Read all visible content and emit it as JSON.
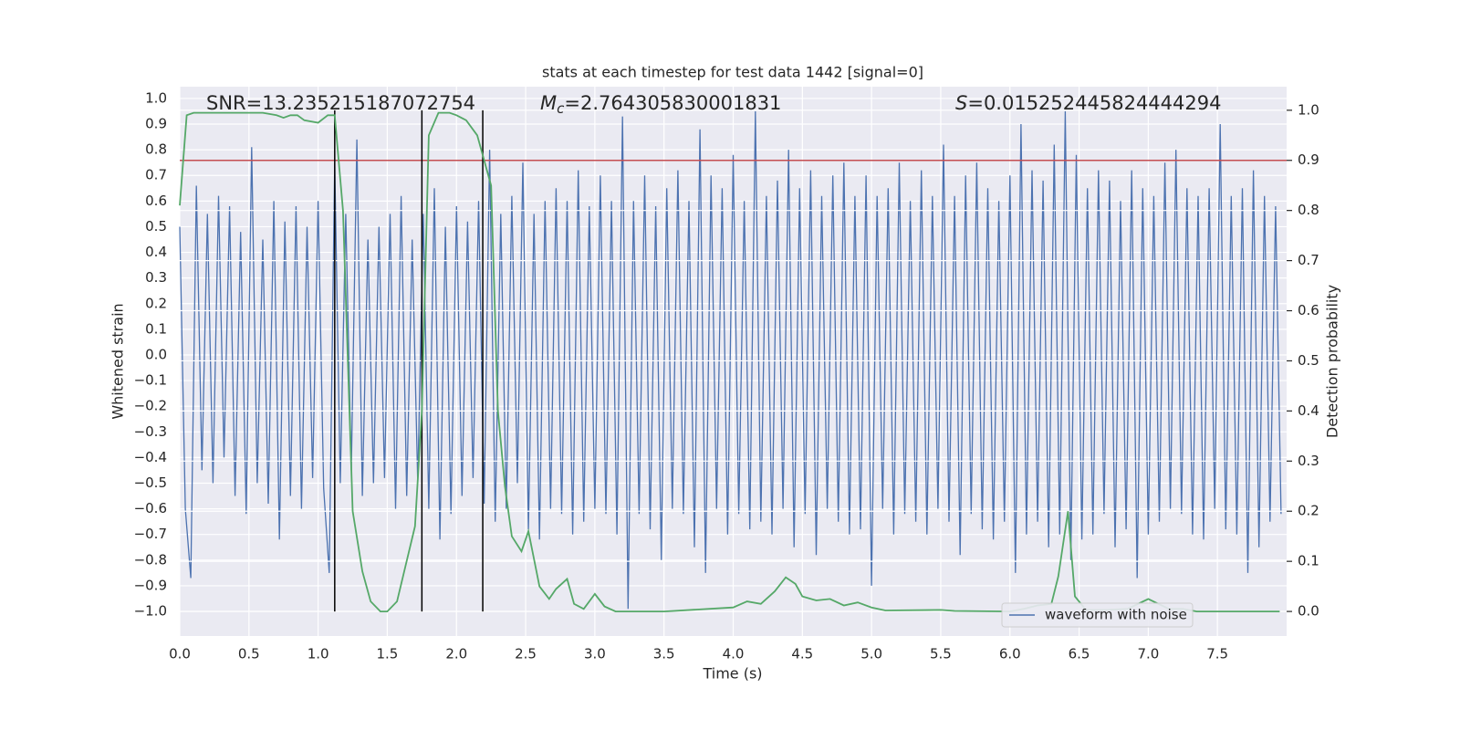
{
  "chart_data": {
    "type": "line",
    "title": "stats at each timestep for test data 1442 [signal=0]",
    "x_label": "Time (s)",
    "y_label": "Whitened strain",
    "y2_label": "Detection probability",
    "annotations": [
      {
        "text": "SNR=13.235215187072754"
      },
      {
        "symbol": "M",
        "subscript": "c",
        "text": "=2.764305830001831"
      },
      {
        "symbol": "S",
        "text": "=0.015252445824444294"
      }
    ],
    "xlim": [
      0,
      8
    ],
    "ylim": [
      -1.096,
      1.046
    ],
    "y2lim": [
      -0.049,
      1.047
    ],
    "xticks": [
      {
        "value": 0,
        "label": "0.0"
      },
      0.5,
      {
        "value": 1,
        "label": "1.0"
      },
      1.5,
      {
        "value": 2,
        "label": "2.0"
      },
      2.5,
      {
        "value": 3,
        "label": "3.0"
      },
      3.5,
      {
        "value": 4,
        "label": "4.0"
      },
      4.5,
      {
        "value": 5,
        "label": "5.0"
      },
      5.5,
      {
        "value": 6,
        "label": "6.0"
      },
      6.5,
      {
        "value": 7,
        "label": "7.0"
      },
      7.5
    ],
    "yticks": [
      {
        "value": -1,
        "label": "−1.0"
      },
      {
        "value": -0.9,
        "label": "−0.9"
      },
      {
        "value": -0.8,
        "label": "−0.8"
      },
      {
        "value": -0.7,
        "label": "−0.7"
      },
      {
        "value": -0.6,
        "label": "−0.6"
      },
      {
        "value": -0.5,
        "label": "−0.5"
      },
      {
        "value": -0.4,
        "label": "−0.4"
      },
      {
        "value": -0.3,
        "label": "−0.3"
      },
      {
        "value": -0.2,
        "label": "−0.2"
      },
      {
        "value": -0.1,
        "label": "−0.1"
      },
      {
        "value": 0,
        "label": "0.0"
      },
      0.1,
      0.2,
      0.3,
      0.4,
      0.5,
      0.6,
      0.7,
      0.8,
      0.9,
      {
        "value": 1,
        "label": "1.0"
      }
    ],
    "y2ticks": [
      {
        "value": 0,
        "label": "0.0"
      },
      0.1,
      0.2,
      0.3,
      0.4,
      0.5,
      0.6,
      0.7,
      0.8,
      0.9,
      {
        "value": 1,
        "label": "1.0"
      }
    ],
    "grid": true,
    "legend": "lower right",
    "series": [
      {
        "name": "waveform with noise",
        "color": "#4c72b0",
        "x": [
          0,
          0.04,
          0.08,
          0.12,
          0.16,
          0.2,
          0.24,
          0.28,
          0.32,
          0.36,
          0.4,
          0.44,
          0.48,
          0.52,
          0.56,
          0.6,
          0.64,
          0.68,
          0.72,
          0.76,
          0.8,
          0.84,
          0.88,
          0.92,
          0.96,
          1,
          1.04,
          1.08,
          1.12,
          1.16,
          1.2,
          1.24,
          1.28,
          1.32,
          1.36,
          1.4,
          1.44,
          1.48,
          1.52,
          1.56,
          1.6,
          1.64,
          1.68,
          1.72,
          1.76,
          1.8,
          1.84,
          1.88,
          1.92,
          1.96,
          2,
          2.04,
          2.08,
          2.12,
          2.16,
          2.2,
          2.24,
          2.28,
          2.32,
          2.36,
          2.4,
          2.44,
          2.48,
          2.52,
          2.56,
          2.6,
          2.64,
          2.68,
          2.72,
          2.76,
          2.8,
          2.84,
          2.88,
          2.92,
          2.96,
          3,
          3.04,
          3.08,
          3.12,
          3.16,
          3.2,
          3.24,
          3.28,
          3.32,
          3.36,
          3.4,
          3.44,
          3.48,
          3.52,
          3.56,
          3.6,
          3.64,
          3.68,
          3.72,
          3.76,
          3.8,
          3.84,
          3.88,
          3.92,
          3.96,
          4,
          4.04,
          4.08,
          4.12,
          4.16,
          4.2,
          4.24,
          4.28,
          4.32,
          4.36,
          4.4,
          4.44,
          4.48,
          4.52,
          4.56,
          4.6,
          4.64,
          4.68,
          4.72,
          4.76,
          4.8,
          4.84,
          4.88,
          4.92,
          4.96,
          5,
          5.04,
          5.08,
          5.12,
          5.16,
          5.2,
          5.24,
          5.28,
          5.32,
          5.36,
          5.4,
          5.44,
          5.48,
          5.52,
          5.56,
          5.6,
          5.64,
          5.68,
          5.72,
          5.76,
          5.8,
          5.84,
          5.88,
          5.92,
          5.96,
          6,
          6.04,
          6.08,
          6.12,
          6.16,
          6.2,
          6.24,
          6.28,
          6.32,
          6.36,
          6.4,
          6.44,
          6.48,
          6.52,
          6.56,
          6.6,
          6.64,
          6.68,
          6.72,
          6.76,
          6.8,
          6.84,
          6.88,
          6.92,
          6.96,
          7,
          7.04,
          7.08,
          7.12,
          7.16,
          7.2,
          7.24,
          7.28,
          7.32,
          7.36,
          7.4,
          7.44,
          7.48,
          7.52,
          7.56,
          7.6,
          7.64,
          7.68,
          7.72,
          7.76,
          7.8,
          7.84,
          7.88,
          7.92,
          7.96
        ],
        "values": [
          0.5,
          -0.6,
          -0.87,
          0.66,
          -0.45,
          0.55,
          -0.5,
          0.62,
          -0.4,
          0.58,
          -0.55,
          0.48,
          -0.62,
          0.81,
          -0.5,
          0.45,
          -0.58,
          0.6,
          -0.72,
          0.52,
          -0.55,
          0.58,
          -0.6,
          0.5,
          -0.48,
          0.6,
          -0.52,
          -0.85,
          0.75,
          -0.5,
          0.55,
          -0.45,
          0.84,
          -0.55,
          0.45,
          -0.5,
          0.5,
          -0.48,
          0.55,
          -0.6,
          0.62,
          -0.55,
          0.45,
          -0.5,
          0.55,
          -0.6,
          0.65,
          -0.72,
          0.5,
          -0.62,
          0.58,
          -0.55,
          0.52,
          -0.48,
          0.6,
          -0.58,
          0.8,
          -0.65,
          0.55,
          -0.6,
          0.62,
          -0.5,
          0.75,
          -0.68,
          0.55,
          -0.72,
          0.6,
          -0.6,
          0.65,
          -0.62,
          0.6,
          -0.7,
          0.72,
          -0.65,
          0.58,
          -0.6,
          0.7,
          -0.62,
          0.6,
          -0.7,
          0.93,
          -0.99,
          0.6,
          -0.62,
          0.7,
          -0.68,
          0.58,
          -0.8,
          0.65,
          -0.6,
          0.72,
          -0.62,
          0.6,
          -0.75,
          0.88,
          -0.85,
          0.7,
          -0.6,
          0.65,
          -0.7,
          0.78,
          -0.62,
          0.6,
          -0.68,
          0.95,
          -0.65,
          0.62,
          -0.7,
          0.68,
          -0.6,
          0.8,
          -0.75,
          0.65,
          -0.62,
          0.72,
          -0.78,
          0.62,
          -0.6,
          0.7,
          -0.65,
          0.75,
          -0.7,
          0.62,
          -0.68,
          0.7,
          -0.9,
          0.62,
          -0.6,
          0.65,
          -0.7,
          0.75,
          -0.62,
          0.6,
          -0.65,
          0.72,
          -0.7,
          0.62,
          -0.6,
          0.82,
          -0.65,
          0.62,
          -0.78,
          0.7,
          -0.62,
          0.75,
          -0.68,
          0.65,
          -0.72,
          0.6,
          -0.65,
          0.7,
          -0.85,
          0.9,
          -0.7,
          0.72,
          -0.65,
          0.68,
          -0.75,
          0.82,
          -0.7,
          0.95,
          -0.8,
          0.78,
          -0.72,
          0.65,
          -0.7,
          0.72,
          -0.62,
          0.68,
          -0.75,
          0.6,
          -0.68,
          0.72,
          -0.87,
          0.65,
          -0.7,
          0.62,
          -0.65,
          0.75,
          -0.6,
          0.8,
          -0.62,
          0.65,
          -0.7,
          0.62,
          -0.72,
          0.65,
          -0.6,
          0.9,
          -0.68,
          0.62,
          -0.7,
          0.65,
          -0.85,
          0.72,
          -0.75,
          0.62,
          -0.65,
          0.58,
          -0.62
        ]
      },
      {
        "color": "#55a868",
        "axis": "y2",
        "x": [
          0,
          0.05,
          0.1,
          0.2,
          0.3,
          0.4,
          0.5,
          0.6,
          0.7,
          0.75,
          0.8,
          0.85,
          0.9,
          1.0,
          1.07,
          1.12,
          1.18,
          1.25,
          1.32,
          1.38,
          1.45,
          1.5,
          1.57,
          1.7,
          1.75,
          1.8,
          1.87,
          1.95,
          2.0,
          2.07,
          2.15,
          2.2,
          2.25,
          2.3,
          2.35,
          2.4,
          2.47,
          2.52,
          2.6,
          2.67,
          2.72,
          2.8,
          2.85,
          2.92,
          3.0,
          3.07,
          3.15,
          3.5,
          4.0,
          4.1,
          4.2,
          4.3,
          4.38,
          4.45,
          4.5,
          4.6,
          4.7,
          4.8,
          4.9,
          5.0,
          5.1,
          5.5,
          5.6,
          6.0,
          6.1,
          6.2,
          6.3,
          6.35,
          6.42,
          6.47,
          6.55,
          6.7,
          6.85,
          7.0,
          7.15,
          7.25,
          7.35,
          7.95
        ],
        "values": [
          0.81,
          0.99,
          0.995,
          0.995,
          0.995,
          0.995,
          0.995,
          0.995,
          0.99,
          0.985,
          0.99,
          0.99,
          0.98,
          0.975,
          0.99,
          0.99,
          0.8,
          0.2,
          0.08,
          0.02,
          0,
          0,
          0.02,
          0.17,
          0.4,
          0.95,
          0.995,
          0.995,
          0.99,
          0.98,
          0.95,
          0.9,
          0.85,
          0.4,
          0.25,
          0.15,
          0.12,
          0.16,
          0.05,
          0.025,
          0.045,
          0.065,
          0.015,
          0.005,
          0.035,
          0.01,
          0,
          0,
          0.008,
          0.02,
          0.015,
          0.04,
          0.068,
          0.055,
          0.03,
          0.022,
          0.025,
          0.012,
          0.018,
          0.008,
          0.002,
          0.003,
          0.001,
          0,
          0.005,
          0.012,
          0.015,
          0.07,
          0.2,
          0.03,
          0.003,
          0.003,
          0.005,
          0.025,
          0.005,
          0.005,
          0,
          0
        ]
      }
    ],
    "hline": {
      "value": 0.9,
      "axis": "y2",
      "color": "#c44e52"
    },
    "vlines": [
      {
        "x": 1.12,
        "ymin": 0,
        "ymax": 1
      },
      {
        "x": 1.75,
        "ymin": 0,
        "ymax": 1
      },
      {
        "x": 2.19,
        "ymin": 0,
        "ymax": 1
      }
    ],
    "vline_color": "#000000",
    "background": "#eaeaf2"
  }
}
